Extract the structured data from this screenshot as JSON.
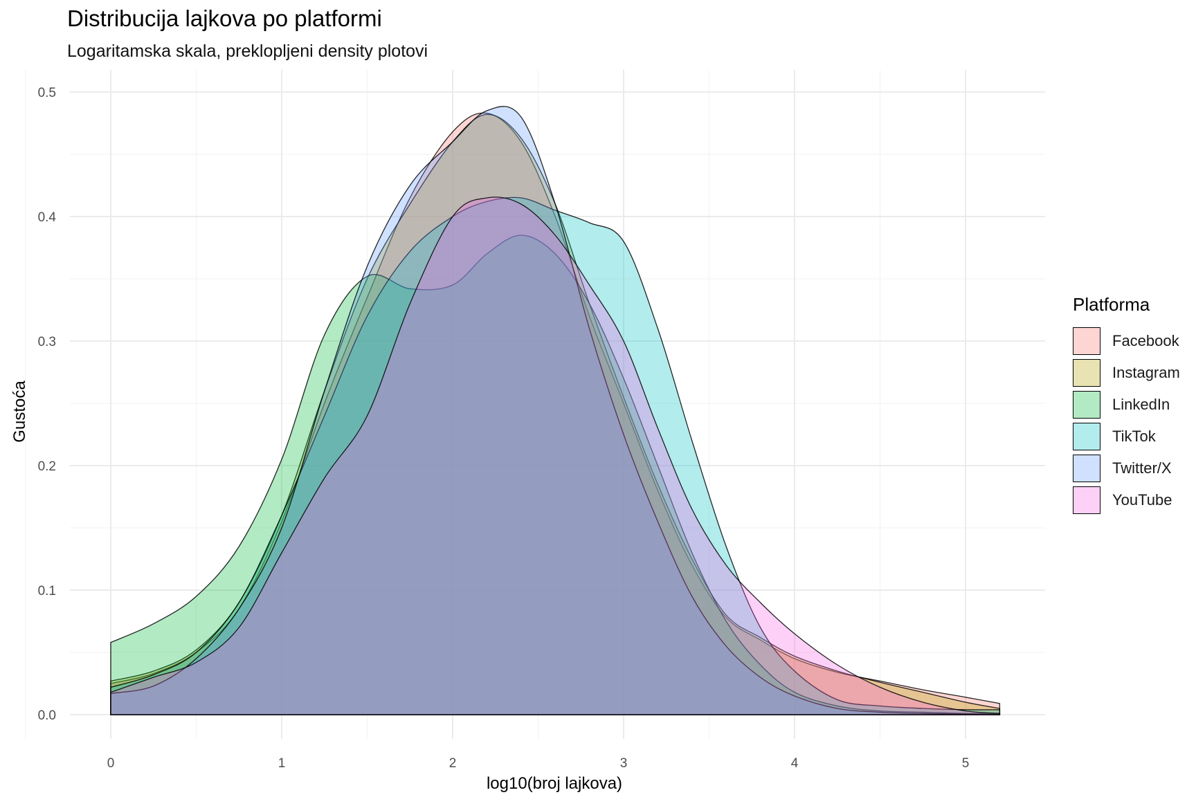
{
  "chart_data": {
    "type": "area",
    "title": "Distribucija lajkova po platformi",
    "subtitle": "Logaritamska skala, preklopljeni density plotovi",
    "xlabel": "log10(broj lajkova)",
    "ylabel": "Gustoća",
    "xlim": [
      -0.2,
      5.45
    ],
    "ylim": [
      -0.02,
      0.52
    ],
    "x_ticks": [
      0,
      1,
      2,
      3,
      4,
      5
    ],
    "x_tick_labels": [
      "0",
      "1",
      "2",
      "3",
      "4",
      "5"
    ],
    "y_ticks": [
      0.0,
      0.1,
      0.2,
      0.3,
      0.4,
      0.5
    ],
    "y_tick_labels": [
      "0.0",
      "0.1",
      "0.2",
      "0.3",
      "0.4",
      "0.5"
    ],
    "grid": true,
    "legend_position": "right",
    "legend_title": "Platforma",
    "fill_opacity": 0.3,
    "series": [
      {
        "name": "Facebook",
        "color": "#F8766D",
        "x": [
          0,
          0.25,
          0.5,
          0.75,
          1.0,
          1.25,
          1.5,
          1.75,
          2.0,
          2.2,
          2.4,
          2.6,
          2.8,
          3.0,
          3.2,
          3.4,
          3.6,
          3.8,
          4.0,
          4.25,
          4.5,
          4.75,
          5.0,
          5.2
        ],
        "y": [
          0.025,
          0.033,
          0.05,
          0.085,
          0.155,
          0.25,
          0.335,
          0.415,
          0.468,
          0.483,
          0.46,
          0.4,
          0.32,
          0.25,
          0.18,
          0.12,
          0.078,
          0.06,
          0.045,
          0.034,
          0.027,
          0.02,
          0.014,
          0.009
        ]
      },
      {
        "name": "Instagram",
        "color": "#B79F00",
        "x": [
          0,
          0.25,
          0.5,
          0.75,
          1.0,
          1.25,
          1.5,
          1.75,
          2.0,
          2.2,
          2.4,
          2.6,
          2.8,
          3.0,
          3.2,
          3.4,
          3.6,
          3.8,
          4.0,
          4.25,
          4.5,
          4.75,
          5.0,
          5.2
        ],
        "y": [
          0.027,
          0.035,
          0.052,
          0.09,
          0.16,
          0.26,
          0.35,
          0.41,
          0.46,
          0.482,
          0.463,
          0.41,
          0.33,
          0.255,
          0.185,
          0.125,
          0.08,
          0.062,
          0.047,
          0.035,
          0.026,
          0.018,
          0.01,
          0.005
        ]
      },
      {
        "name": "LinkedIn",
        "color": "#00BA38",
        "x": [
          0,
          0.25,
          0.5,
          0.75,
          1.0,
          1.25,
          1.5,
          1.75,
          2.0,
          2.2,
          2.4,
          2.6,
          2.8,
          3.0,
          3.2,
          3.4,
          3.6,
          3.8,
          4.0,
          4.25,
          4.5,
          4.75,
          5.0,
          5.2
        ],
        "y": [
          0.058,
          0.073,
          0.095,
          0.135,
          0.205,
          0.305,
          0.352,
          0.342,
          0.345,
          0.37,
          0.385,
          0.37,
          0.33,
          0.27,
          0.2,
          0.13,
          0.075,
          0.04,
          0.018,
          0.007,
          0.003,
          0.002,
          0.001,
          0.001
        ]
      },
      {
        "name": "TikTok",
        "color": "#00BFC4",
        "x": [
          0,
          0.25,
          0.5,
          0.75,
          1.0,
          1.25,
          1.5,
          1.75,
          2.0,
          2.2,
          2.4,
          2.6,
          2.8,
          3.0,
          3.2,
          3.4,
          3.6,
          3.8,
          4.0,
          4.25,
          4.5,
          4.75,
          5.0,
          5.2
        ],
        "y": [
          0.022,
          0.032,
          0.05,
          0.09,
          0.16,
          0.24,
          0.32,
          0.372,
          0.4,
          0.412,
          0.415,
          0.405,
          0.395,
          0.38,
          0.31,
          0.22,
          0.135,
          0.07,
          0.035,
          0.012,
          0.007,
          0.005,
          0.004,
          0.004
        ]
      },
      {
        "name": "Twitter/X",
        "color": "#619CFF",
        "x": [
          0,
          0.25,
          0.5,
          0.75,
          1.0,
          1.25,
          1.5,
          1.75,
          2.0,
          2.2,
          2.4,
          2.6,
          2.8,
          3.0,
          3.2,
          3.4,
          3.6,
          3.8,
          4.0,
          4.25,
          4.5,
          4.75,
          5.0,
          5.2
        ],
        "y": [
          0.017,
          0.023,
          0.045,
          0.085,
          0.15,
          0.26,
          0.36,
          0.425,
          0.46,
          0.485,
          0.48,
          0.41,
          0.31,
          0.225,
          0.155,
          0.095,
          0.055,
          0.03,
          0.015,
          0.005,
          0.002,
          0.001,
          0.0005,
          0.0003
        ]
      },
      {
        "name": "YouTube",
        "color": "#F564E3",
        "x": [
          0,
          0.25,
          0.5,
          0.75,
          1.0,
          1.25,
          1.5,
          1.75,
          2.0,
          2.2,
          2.4,
          2.6,
          2.8,
          3.0,
          3.2,
          3.4,
          3.6,
          3.8,
          4.0,
          4.25,
          4.5,
          4.75,
          5.0,
          5.2
        ],
        "y": [
          0.018,
          0.03,
          0.042,
          0.07,
          0.13,
          0.19,
          0.24,
          0.33,
          0.4,
          0.415,
          0.41,
          0.385,
          0.345,
          0.3,
          0.23,
          0.165,
          0.12,
          0.09,
          0.065,
          0.04,
          0.022,
          0.01,
          0.003,
          0.001
        ]
      }
    ]
  }
}
